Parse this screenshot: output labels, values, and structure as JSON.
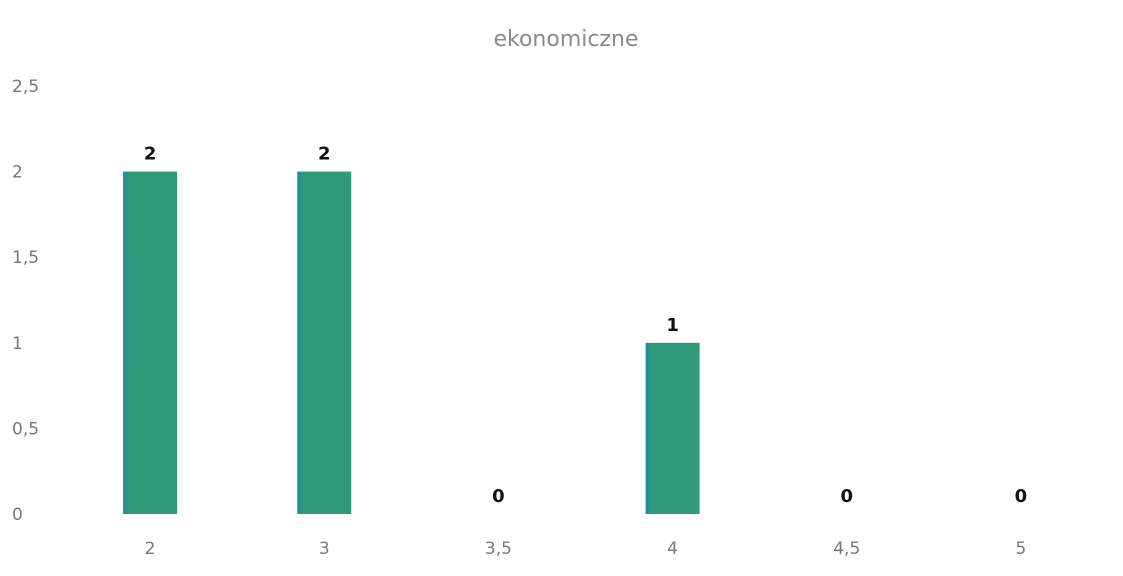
{
  "chart_data": {
    "type": "bar",
    "title": "ekonomiczne",
    "categories": [
      "2",
      "3",
      "3,5",
      "4",
      "4,5",
      "5"
    ],
    "values": [
      2,
      2,
      0,
      1,
      0,
      0
    ],
    "data_labels": [
      "2",
      "2",
      "0",
      "1",
      "0",
      "0"
    ],
    "y_ticks": [
      "0",
      "0,5",
      "1",
      "1,5",
      "2",
      "2,5"
    ],
    "y_tick_values": [
      0,
      0.5,
      1,
      1.5,
      2,
      2.5
    ],
    "ylim": [
      0,
      2.5
    ],
    "xlabel": "",
    "ylabel": "",
    "grid": false,
    "legend": "none",
    "bar_color": "#2e9a7a",
    "bar_edge_color": "#1f8aa0"
  }
}
